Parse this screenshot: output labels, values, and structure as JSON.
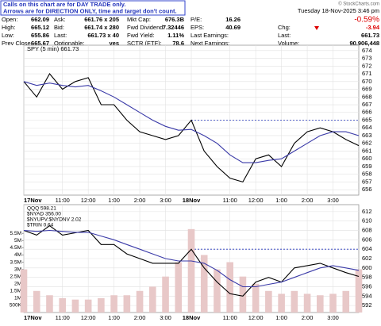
{
  "header": {
    "notice": [
      "Calls on this chart are for DAY TRADE only.",
      "Arrows are for DIRECTION ONLY, time and target don't count."
    ],
    "copyright": "© StockCharts.com",
    "datetime": "Tuesday 18-Nov-2025 3:46 pm",
    "change_percent": "-0.59%",
    "columns": [
      [
        [
          "Open:",
          "662.09"
        ],
        [
          "High:",
          "665.12"
        ],
        [
          "Low:",
          "655.86"
        ],
        [
          "Prev Close:",
          "665.67"
        ]
      ],
      [
        [
          "Ask:",
          "661.76 x 205"
        ],
        [
          "Bid:",
          "661.74 x 280"
        ],
        [
          "Last:",
          "661.73 x 40"
        ],
        [
          "Optionable:",
          "yes"
        ]
      ],
      [
        [
          "Mkt Cap:",
          "676.3B"
        ],
        [
          "Fwd Dividend:",
          "7.32446"
        ],
        [
          "Fwd Yield:",
          "1.11%"
        ],
        [
          "SCTR (ETF):",
          "78.6"
        ]
      ],
      [
        [
          "P/E:",
          "16.26"
        ],
        [
          "EPS:",
          "40.69"
        ],
        [
          "Last Earnings:",
          ""
        ],
        [
          "Next Earnings:",
          ""
        ]
      ],
      [
        [
          "Chg:",
          "-3.94"
        ],
        [
          "Last:",
          "661.73"
        ],
        [
          "Volume:",
          "90,906,448"
        ]
      ]
    ]
  },
  "chart_data": [
    {
      "type": "line",
      "title": "SPY (5 min) 661.73",
      "x": [
        0,
        0.5,
        1,
        1.5,
        2,
        2.5,
        3,
        3.5,
        4,
        4.5,
        5,
        5.5,
        6,
        6.5,
        7,
        7.5,
        8,
        8.5,
        9,
        9.5,
        10,
        10.5,
        11,
        11.5,
        12,
        12.5,
        13
      ],
      "series": [
        {
          "color": "#000000",
          "values": [
            670,
            668,
            671,
            669,
            670,
            670.5,
            667,
            667,
            665,
            663.5,
            663,
            662.5,
            663,
            665,
            661,
            659,
            657.5,
            657,
            660,
            660.5,
            659,
            662,
            663.5,
            664,
            663.5,
            662.5,
            661.7
          ]
        },
        {
          "color": "#3a3aa8",
          "values": [
            670,
            669.5,
            669.8,
            669.5,
            669.3,
            669.5,
            668.8,
            668,
            667,
            666,
            665,
            664.2,
            663.7,
            663.8,
            663,
            662,
            660.5,
            659.5,
            659.5,
            659.8,
            660,
            661,
            662,
            663,
            663.5,
            663.5,
            663
          ]
        }
      ],
      "reference_line": 665,
      "xlim": [
        0,
        13
      ],
      "xticks": [
        {
          "value": 0,
          "label": "17Nov"
        },
        {
          "value": 1.5,
          "label": "11:00"
        },
        {
          "value": 2.5,
          "label": "12:00"
        },
        {
          "value": 3.5,
          "label": "1:00"
        },
        {
          "value": 4.5,
          "label": "2:00"
        },
        {
          "value": 5.5,
          "label": "3:00"
        },
        {
          "value": 6.5,
          "label": "18Nov"
        },
        {
          "value": 8,
          "label": "11:00"
        },
        {
          "value": 9,
          "label": "12:00"
        },
        {
          "value": 10,
          "label": "1:00"
        },
        {
          "value": 11,
          "label": "2:00"
        },
        {
          "value": 12,
          "label": "3:00"
        }
      ],
      "ylim": [
        655.3,
        674.7
      ],
      "yticks": [
        656,
        657,
        658,
        659,
        660,
        661,
        662,
        663,
        664,
        665,
        666,
        667,
        668,
        669,
        670,
        671,
        672,
        673,
        674
      ],
      "grid": true
    },
    {
      "type": "line",
      "labels": [
        "QQQ 598.21",
        "$NYAD 356.00",
        "$NYUPV:$NYDNV 2.02",
        "$TRIN 0.64"
      ],
      "x": [
        0,
        0.5,
        1,
        1.5,
        2,
        2.5,
        3,
        3.5,
        4,
        4.5,
        5,
        5.5,
        6,
        6.5,
        7,
        7.5,
        8,
        8.5,
        9,
        9.5,
        10,
        10.5,
        11,
        11.5,
        12,
        12.5,
        13
      ],
      "series": [
        {
          "kind": "bar",
          "axis": "y2",
          "color": "#e8c8c8",
          "values": [
            3000000,
            1500000,
            1200000,
            1000000,
            900000,
            900000,
            1000000,
            1200000,
            1200000,
            1500000,
            1800000,
            2500000,
            3500000,
            5800000,
            4000000,
            3000000,
            3500000,
            2500000,
            2000000,
            1500000,
            1300000,
            1500000,
            1300000,
            1200000,
            1300000,
            1500000,
            3000000
          ]
        },
        {
          "color": "#000000",
          "values": [
            608,
            607,
            609,
            607,
            607.5,
            608,
            605,
            605,
            603,
            602,
            601,
            601,
            601,
            604,
            600,
            597,
            594.5,
            594,
            597,
            598,
            597,
            600,
            600.5,
            601,
            600,
            599,
            598.2
          ]
        },
        {
          "color": "#3a3aa8",
          "values": [
            608,
            607.8,
            608,
            607.8,
            607.6,
            607.6,
            606.8,
            606,
            605,
            604,
            603,
            602,
            601.5,
            601.5,
            601,
            599.5,
            597.5,
            596,
            596,
            596.5,
            597,
            598,
            599,
            600,
            600.5,
            600,
            599.5
          ]
        }
      ],
      "reference_line": 604,
      "xlim": [
        0,
        13
      ],
      "xticks": [
        {
          "value": 0,
          "label": "17Nov"
        },
        {
          "value": 1.5,
          "label": "11:00"
        },
        {
          "value": 2.5,
          "label": "12:00"
        },
        {
          "value": 3.5,
          "label": "1:00"
        },
        {
          "value": 4.5,
          "label": "2:00"
        },
        {
          "value": 5.5,
          "label": "3:00"
        },
        {
          "value": 6.5,
          "label": "18Nov"
        },
        {
          "value": 8,
          "label": "11:00"
        },
        {
          "value": 9,
          "label": "12:00"
        },
        {
          "value": 10,
          "label": "1:00"
        },
        {
          "value": 11,
          "label": "2:00"
        },
        {
          "value": 12,
          "label": "3:00"
        }
      ],
      "ylim": [
        590.5,
        613.5
      ],
      "yticks": [
        592,
        594,
        596,
        598,
        600,
        602,
        604,
        606,
        608,
        610,
        612
      ],
      "y2lim": [
        0,
        7500000
      ],
      "y2ticks": [
        {
          "value": 500000,
          "label": "500K"
        },
        {
          "value": 1000000,
          "label": "1M"
        },
        {
          "value": 1500000,
          "label": "1.5M"
        },
        {
          "value": 2000000,
          "label": "2M"
        },
        {
          "value": 2500000,
          "label": "2.5M"
        },
        {
          "value": 3000000,
          "label": "3M"
        },
        {
          "value": 3500000,
          "label": "3.5M"
        },
        {
          "value": 4000000,
          "label": "4M"
        },
        {
          "value": 4500000,
          "label": "4.5M"
        },
        {
          "value": 5000000,
          "label": "5M"
        },
        {
          "value": 5500000,
          "label": "5.5M"
        }
      ],
      "grid": true
    }
  ]
}
